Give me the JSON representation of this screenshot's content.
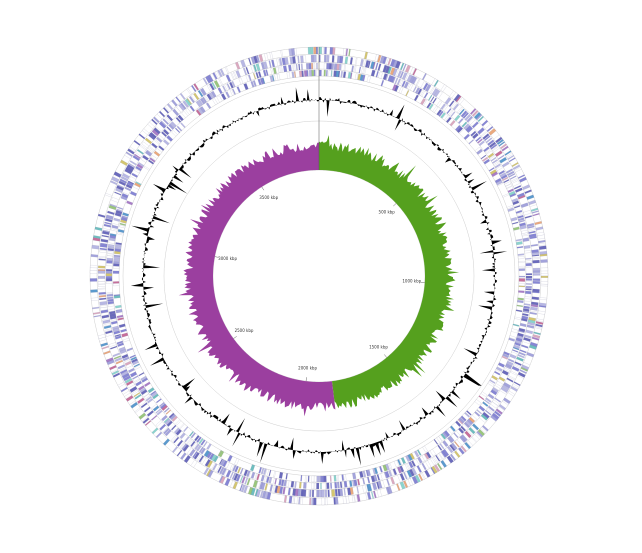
{
  "figure": {
    "type": "circular genome map",
    "background_color": "#ffffff"
  },
  "ticks": [
    {
      "kbp": 500,
      "label": "500 kbp"
    },
    {
      "kbp": 1000,
      "label": "1000 kbp"
    },
    {
      "kbp": 1500,
      "label": "1500 kbp"
    },
    {
      "kbp": 2000,
      "label": "2000 kbp"
    },
    {
      "kbp": 2500,
      "label": "2500 kbp"
    },
    {
      "kbp": 3000,
      "label": "3000 kbp"
    },
    {
      "kbp": 3500,
      "label": "3500 kbp"
    }
  ],
  "genome_length_kbp": 3850,
  "tracks": {
    "cds_colors": [
      "#5b5bb5",
      "#7a7ad0",
      "#9a9ad8",
      "#b0b0e0",
      "#4a90c8",
      "#5fb8b8",
      "#7fd0c8",
      "#c06090",
      "#d8a0b8",
      "#e8a070",
      "#90c070",
      "#d0c060",
      "#a070c0"
    ],
    "gc_content_color": "#000000",
    "gc_skew_positive_color": "#55a01e",
    "gc_skew_negative_color": "#9b3f9f",
    "gc_skew_switch_kbp": [
      0,
      1850
    ]
  }
}
